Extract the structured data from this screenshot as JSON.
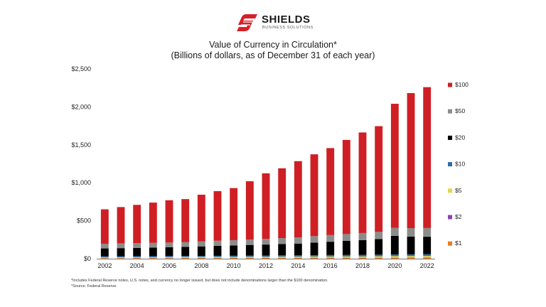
{
  "brand": {
    "name": "SHIELDS",
    "tagline": "BUSINESS SOLUTIONS",
    "color": "#d62027"
  },
  "chart_data": {
    "type": "bar",
    "stacked": true,
    "title": "Value of Currency in Circulation*",
    "subtitle": "(Billions of dollars, as of December 31 of each year)",
    "xlabel": "",
    "ylabel": "",
    "ylim": [
      0,
      2500
    ],
    "y_ticks": [
      "$0",
      "$500",
      "$1,000",
      "$1,500",
      "$2,000",
      "$2,500"
    ],
    "x_tick_labels": [
      "2002",
      "2004",
      "2006",
      "2008",
      "2010",
      "2012",
      "2014",
      "2016",
      "2018",
      "2020",
      "2022"
    ],
    "legend_position": "right",
    "grid": false,
    "categories": [
      "2002",
      "2003",
      "2004",
      "2005",
      "2006",
      "2007",
      "2008",
      "2009",
      "2010",
      "2011",
      "2012",
      "2013",
      "2014",
      "2015",
      "2016",
      "2017",
      "2018",
      "2019",
      "2020",
      "2021",
      "2022"
    ],
    "series": [
      {
        "name": "$1",
        "color": "#e67e22",
        "values": [
          7,
          7,
          8,
          8,
          8,
          9,
          9,
          9,
          10,
          10,
          10,
          11,
          11,
          12,
          12,
          12,
          12,
          13,
          13,
          14,
          14
        ]
      },
      {
        "name": "$2",
        "color": "#8e44ad",
        "values": [
          1,
          1,
          1,
          1,
          2,
          2,
          2,
          2,
          2,
          2,
          2,
          2,
          2,
          2,
          2,
          2,
          2,
          2,
          3,
          3,
          3
        ]
      },
      {
        "name": "$5",
        "color": "#e8d44d",
        "values": [
          9,
          10,
          10,
          10,
          10,
          11,
          11,
          11,
          11,
          12,
          12,
          13,
          13,
          14,
          14,
          15,
          15,
          16,
          17,
          17,
          18
        ]
      },
      {
        "name": "$10",
        "color": "#2e6da4",
        "values": [
          15,
          15,
          15,
          15,
          15,
          15,
          15,
          16,
          16,
          17,
          17,
          18,
          18,
          19,
          20,
          20,
          21,
          22,
          23,
          23,
          24
        ]
      },
      {
        "name": "$20",
        "color": "#000000",
        "values": [
          103,
          106,
          108,
          112,
          115,
          118,
          125,
          131,
          135,
          140,
          145,
          150,
          155,
          165,
          175,
          185,
          195,
          205,
          245,
          235,
          230
        ]
      },
      {
        "name": "$50",
        "color": "#8c8c8c",
        "values": [
          60,
          63,
          62,
          63,
          63,
          65,
          67,
          68,
          70,
          72,
          75,
          77,
          80,
          85,
          88,
          90,
          93,
          95,
          105,
          110,
          115
        ]
      },
      {
        "name": "$100",
        "color": "#cf1f24",
        "values": [
          455,
          478,
          505,
          530,
          557,
          565,
          614,
          653,
          686,
          767,
          864,
          920,
          1006,
          1078,
          1146,
          1241,
          1325,
          1393,
          1635,
          1780,
          1856
        ]
      }
    ]
  },
  "footnotes": {
    "note": "*Includes Federal Reserve notes, U.S. notes, and currency no longer issued, but does not include denominations larger than the $100 denomination.",
    "source": "*Source: Federal Reserve."
  }
}
